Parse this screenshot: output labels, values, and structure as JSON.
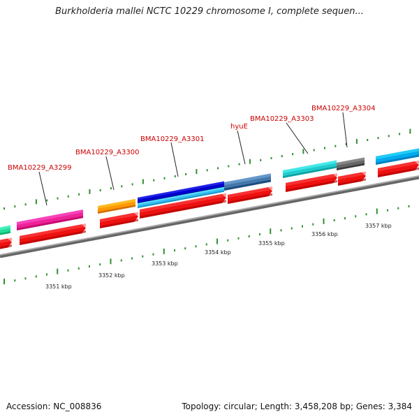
{
  "title": "Burkholderia mallei NCTC 10229 chromosome I, complete sequen...",
  "footer": {
    "accession": "Accession: NC_008836",
    "summary": "Topology: circular; Length: 3,458,208 bp; Genes: 3,384"
  },
  "colors": {
    "backbone": "#8a8a8a",
    "tick": "#2f8f2f",
    "cds_reverse": "#ee1111",
    "label": "#cc0000"
  },
  "scale": {
    "labels": [
      "3351 kbp",
      "3352 kbp",
      "3353 kbp",
      "3354 kbp",
      "3355 kbp",
      "3356 kbp",
      "3357 kbp"
    ]
  },
  "genes": [
    {
      "name": "BMA10229_A3299",
      "color": "#ee2299"
    },
    {
      "name": "BMA10229_A3300",
      "color": "#ff9900"
    },
    {
      "name": "BMA10229_A3301",
      "color": "#0000cc"
    },
    {
      "name": "hyuE",
      "color": "#4477aa"
    },
    {
      "name": "BMA10229_A3303",
      "color": "#22cccc"
    },
    {
      "name": "BMA10229_A3304",
      "color": "#666666"
    }
  ],
  "unlabeled_features": [
    {
      "color": "#22dd99"
    },
    {
      "color": "#00aaee"
    },
    {
      "color": "#33bbee"
    }
  ]
}
